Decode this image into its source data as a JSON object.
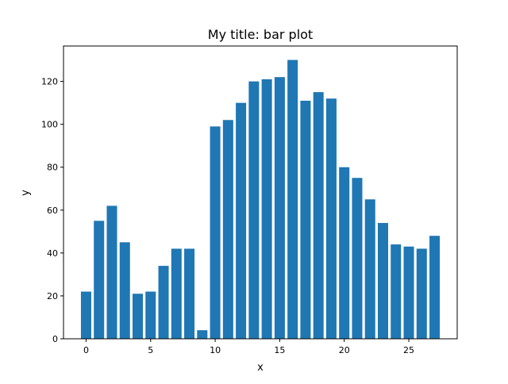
{
  "chart_data": {
    "type": "bar",
    "title": "My title: bar plot",
    "xlabel": "x",
    "ylabel": "y",
    "x": [
      0,
      1,
      2,
      3,
      4,
      5,
      6,
      7,
      8,
      9,
      10,
      11,
      12,
      13,
      14,
      15,
      16,
      17,
      18,
      19,
      20,
      21,
      22,
      23,
      24,
      25,
      26,
      27
    ],
    "values": [
      22,
      55,
      62,
      45,
      21,
      22,
      34,
      42,
      42,
      4,
      99,
      102,
      110,
      120,
      121,
      122,
      130,
      111,
      115,
      112,
      80,
      75,
      65,
      54,
      44,
      43,
      42,
      48
    ],
    "xlim": [
      -1.75,
      28.75
    ],
    "ylim": [
      0,
      136.5
    ],
    "xticks": [
      "0",
      "5",
      "10",
      "15",
      "20",
      "25"
    ],
    "yticks": [
      "0",
      "20",
      "40",
      "60",
      "80",
      "100",
      "120"
    ],
    "grid": false,
    "colors": {
      "bar": "#1f77b4",
      "axis": "#000000"
    }
  }
}
